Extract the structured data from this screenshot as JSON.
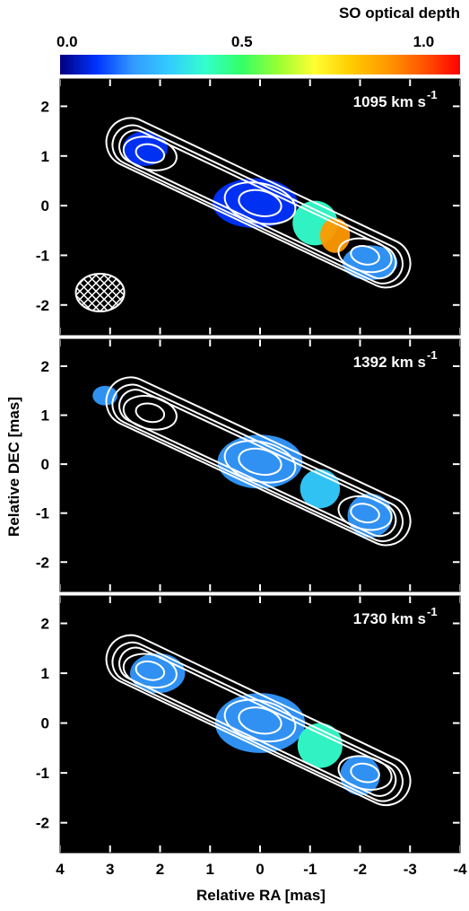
{
  "colorbar": {
    "title": "SO optical depth",
    "min": 0.0,
    "max": 1.1,
    "ticks": [
      {
        "value": 0.0,
        "label": "0.0"
      },
      {
        "value": 0.5,
        "label": "0.5"
      },
      {
        "value": 1.0,
        "label": "1.0"
      }
    ],
    "colormap": [
      "#000080",
      "#0033ff",
      "#3399ff",
      "#33ccff",
      "#33ffcc",
      "#33ff66",
      "#99ff33",
      "#ffff33",
      "#ffcc00",
      "#ff9900",
      "#ff5500",
      "#ff0000"
    ]
  },
  "axes": {
    "xlabel": "Relative RA [mas]",
    "ylabel": "Relative DEC [mas]",
    "xlim": [
      4,
      -4
    ],
    "ylim": [
      -2.6,
      2.55
    ],
    "xticks": [
      {
        "value": 4,
        "label": "4"
      },
      {
        "value": 3,
        "label": "3"
      },
      {
        "value": 2,
        "label": "2"
      },
      {
        "value": 1,
        "label": "1"
      },
      {
        "value": 0,
        "label": "0"
      },
      {
        "value": -1,
        "label": "-1"
      },
      {
        "value": -2,
        "label": "-2"
      },
      {
        "value": -3,
        "label": "-3"
      },
      {
        "value": -4,
        "label": "-4"
      }
    ],
    "yticks": [
      {
        "value": 2,
        "label": "2"
      },
      {
        "value": 1,
        "label": "1"
      },
      {
        "value": 0,
        "label": "0"
      },
      {
        "value": -1,
        "label": "-1"
      },
      {
        "value": -2,
        "label": "-2"
      }
    ]
  },
  "chart_data": [
    {
      "type": "heatmap",
      "panel_label": "1095 km s",
      "panel_label_sup": "-1",
      "background": "#000000",
      "beam": {
        "x": 3.2,
        "y": -1.75
      },
      "contour_centers": [
        {
          "x": 2.2,
          "y": 1.05
        },
        {
          "x": 0.0,
          "y": 0.05
        },
        {
          "x": -2.1,
          "y": -1.0
        }
      ],
      "optical_depth_regions": [
        {
          "x": 2.3,
          "y": 1.15,
          "rx": 0.45,
          "ry": 0.35,
          "tau": 0.12
        },
        {
          "x": 0.1,
          "y": 0.05,
          "rx": 0.85,
          "ry": 0.5,
          "tau": 0.14
        },
        {
          "x": -1.1,
          "y": -0.35,
          "rx": 0.45,
          "ry": 0.45,
          "tau": 0.42
        },
        {
          "x": -1.5,
          "y": -0.6,
          "rx": 0.3,
          "ry": 0.35,
          "tau": 0.88
        },
        {
          "x": -2.2,
          "y": -1.15,
          "rx": 0.55,
          "ry": 0.35,
          "tau": 0.2
        }
      ]
    },
    {
      "type": "heatmap",
      "panel_label": "1392 km s",
      "panel_label_sup": "-1",
      "background": "#000000",
      "contour_centers": [
        {
          "x": 2.2,
          "y": 1.05
        },
        {
          "x": 0.0,
          "y": 0.05
        },
        {
          "x": -2.1,
          "y": -1.0
        }
      ],
      "optical_depth_regions": [
        {
          "x": 3.1,
          "y": 1.4,
          "rx": 0.25,
          "ry": 0.2,
          "tau": 0.2
        },
        {
          "x": 0.0,
          "y": 0.05,
          "rx": 0.85,
          "ry": 0.55,
          "tau": 0.18
        },
        {
          "x": -1.2,
          "y": -0.5,
          "rx": 0.4,
          "ry": 0.4,
          "tau": 0.32
        },
        {
          "x": -2.2,
          "y": -1.05,
          "rx": 0.45,
          "ry": 0.45,
          "tau": 0.2
        }
      ]
    },
    {
      "type": "heatmap",
      "panel_label": "1730 km s",
      "panel_label_sup": "-1",
      "background": "#000000",
      "contour_centers": [
        {
          "x": 2.2,
          "y": 1.05
        },
        {
          "x": 0.0,
          "y": 0.05
        },
        {
          "x": -2.1,
          "y": -1.0
        }
      ],
      "optical_depth_regions": [
        {
          "x": 2.05,
          "y": 1.0,
          "rx": 0.55,
          "ry": 0.4,
          "tau": 0.2
        },
        {
          "x": 0.0,
          "y": 0.0,
          "rx": 0.9,
          "ry": 0.6,
          "tau": 0.15
        },
        {
          "x": -1.2,
          "y": -0.45,
          "rx": 0.45,
          "ry": 0.45,
          "tau": 0.36
        },
        {
          "x": -2.0,
          "y": -1.05,
          "rx": 0.4,
          "ry": 0.4,
          "tau": 0.18
        }
      ]
    }
  ]
}
